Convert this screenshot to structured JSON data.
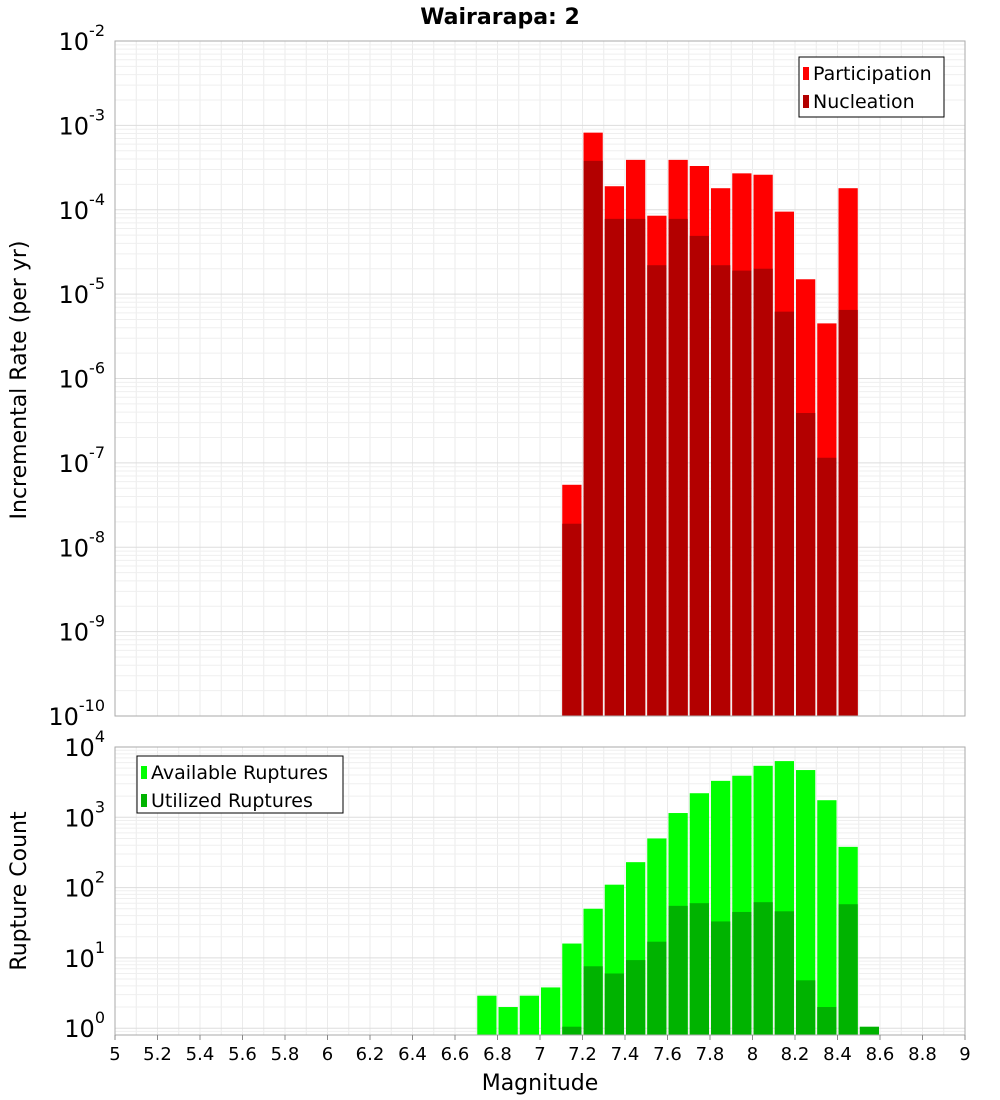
{
  "title": "Wairarapa: 2",
  "xlabel": "Magnitude",
  "x_ticks": [
    "5",
    "5.2",
    "5.4",
    "5.6",
    "5.8",
    "6",
    "6.2",
    "6.4",
    "6.6",
    "6.8",
    "7",
    "7.2",
    "7.4",
    "7.6",
    "7.8",
    "8",
    "8.2",
    "8.4",
    "8.6",
    "8.8",
    "9"
  ],
  "chart_data": [
    {
      "type": "bar",
      "ylabel": "Incremental Rate (per yr)",
      "yscale": "log",
      "ylim": [
        1e-10,
        0.01
      ],
      "xlim": [
        5,
        9
      ],
      "bar_width": 0.1,
      "y_tick_exponents": [
        -2,
        -3,
        -4,
        -5,
        -6,
        -7,
        -8,
        -9,
        -10
      ],
      "grid": true,
      "legend": "top-right",
      "series": [
        {
          "name": "Participation",
          "color": "#ff0000",
          "x": [
            7.15,
            7.25,
            7.35,
            7.45,
            7.55,
            7.65,
            7.75,
            7.85,
            7.95,
            8.05,
            8.15,
            8.25,
            8.35,
            8.45
          ],
          "values": [
            5.5e-08,
            0.00082,
            0.00019,
            0.00039,
            8.5e-05,
            0.00039,
            0.00033,
            0.00018,
            0.00027,
            0.00026,
            9.5e-05,
            1.5e-05,
            4.5e-06,
            0.00018
          ]
        },
        {
          "name": "Nucleation",
          "color": "#b30000",
          "x": [
            7.15,
            7.25,
            7.35,
            7.45,
            7.55,
            7.65,
            7.75,
            7.85,
            7.95,
            8.05,
            8.15,
            8.25,
            8.35,
            8.45
          ],
          "values": [
            1.9e-08,
            0.00038,
            7.8e-05,
            7.8e-05,
            2.2e-05,
            7.8e-05,
            4.9e-05,
            2.2e-05,
            1.9e-05,
            2e-05,
            6.2e-06,
            3.9e-07,
            1.15e-07,
            6.5e-06
          ]
        }
      ]
    },
    {
      "type": "bar",
      "ylabel": "Rupture Count",
      "yscale": "log",
      "ylim": [
        0.8,
        10000
      ],
      "xlim": [
        5,
        9
      ],
      "bar_width": 0.1,
      "y_tick_exponents": [
        4,
        3,
        2,
        1,
        0
      ],
      "grid": true,
      "legend": "top-left",
      "series": [
        {
          "name": "Available Ruptures",
          "color": "#00ff00",
          "x": [
            6.75,
            6.85,
            6.95,
            7.05,
            7.15,
            7.25,
            7.35,
            7.45,
            7.55,
            7.65,
            7.75,
            7.85,
            7.95,
            8.05,
            8.15,
            8.25,
            8.35,
            8.45
          ],
          "values": [
            2.9,
            2.0,
            2.9,
            3.8,
            16,
            50,
            110,
            230,
            500,
            1150,
            2200,
            3300,
            3900,
            5400,
            6300,
            4700,
            1750,
            380
          ]
        },
        {
          "name": "Utilized Ruptures",
          "color": "#00b300",
          "x": [
            7.15,
            7.25,
            7.35,
            7.45,
            7.55,
            7.65,
            7.75,
            7.85,
            7.95,
            8.05,
            8.15,
            8.25,
            8.35,
            8.45,
            8.55
          ],
          "values": [
            1.05,
            7.6,
            6.0,
            9.3,
            17,
            55,
            60,
            33,
            45,
            62,
            46,
            4.8,
            2.0,
            58,
            1.05
          ]
        }
      ]
    }
  ]
}
